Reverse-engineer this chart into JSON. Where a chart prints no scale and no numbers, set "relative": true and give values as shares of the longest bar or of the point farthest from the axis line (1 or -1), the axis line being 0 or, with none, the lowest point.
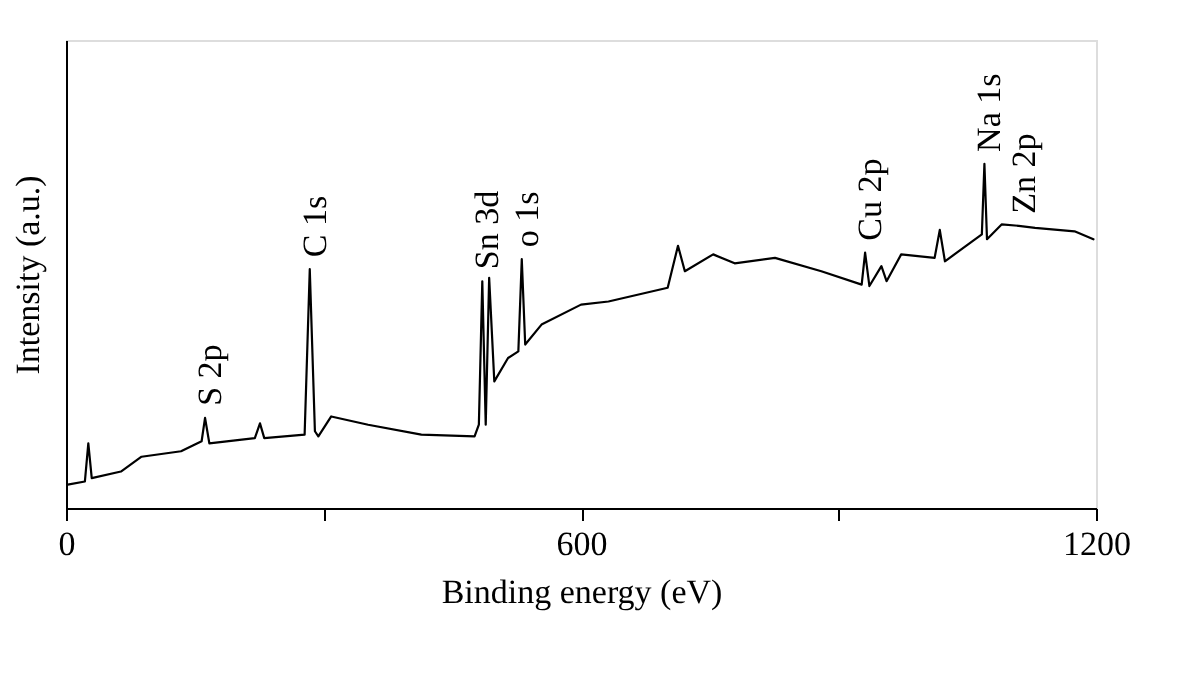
{
  "chart_data": {
    "type": "line",
    "relative": true,
    "xlabel": "Binding energy (eV)",
    "ylabel": "Intensity (a.u.)",
    "xlim": [
      0,
      1200
    ],
    "xticks": [
      0,
      {
        "value": 300,
        "label": null
      },
      600,
      {
        "value": 900,
        "label": null
      },
      1200
    ],
    "grid": false,
    "marker": "none",
    "line_style": "solid",
    "series": [
      {
        "color": "#000000",
        "x": [
          2,
          22,
          26,
          30,
          64,
          88,
          134,
          158,
          162,
          167,
          220,
          226,
          231,
          278,
          284,
          290,
          294,
          309,
          352,
          414,
          476,
          481,
          485,
          489,
          493,
          499,
          515,
          527,
          531,
          535,
          554,
          600,
          632,
          701,
          713,
          721,
          754,
          779,
          826,
          880,
          927,
          931,
          936,
          950,
          956,
          973,
          1012,
          1018,
          1024,
          1051,
          1067,
          1070,
          1073,
          1090,
          1110,
          1129,
          1175,
          1197
        ],
        "values": [
          0.068,
          0.077,
          0.188,
          0.087,
          0.106,
          0.149,
          0.165,
          0.194,
          0.262,
          0.188,
          0.203,
          0.246,
          0.203,
          0.213,
          0.694,
          0.223,
          0.208,
          0.266,
          0.242,
          0.213,
          0.208,
          0.242,
          0.659,
          0.242,
          0.669,
          0.368,
          0.436,
          0.455,
          0.723,
          0.475,
          0.533,
          0.591,
          0.6,
          0.64,
          0.762,
          0.688,
          0.737,
          0.711,
          0.727,
          0.688,
          0.649,
          0.742,
          0.645,
          0.703,
          0.659,
          0.737,
          0.727,
          0.808,
          0.717,
          0.766,
          0.795,
          1.0,
          0.781,
          0.824,
          0.82,
          0.814,
          0.804,
          0.781
        ]
      }
    ],
    "annotations": [
      {
        "text": "S 2p",
        "x": 162,
        "y": 0.262
      },
      {
        "text": "C 1s",
        "x": 284,
        "y": 0.694
      },
      {
        "text": "Sn 3d",
        "x": 485,
        "y": 0.659
      },
      {
        "text": "o 1s",
        "x": 531,
        "y": 0.723
      },
      {
        "text": "Cu 2p",
        "x": 931,
        "y": 0.742
      },
      {
        "text": "Na 1s",
        "x": 1070,
        "y": 1.0
      },
      {
        "text": "Zn 2p",
        "x": 1110,
        "y": 0.82
      }
    ]
  }
}
